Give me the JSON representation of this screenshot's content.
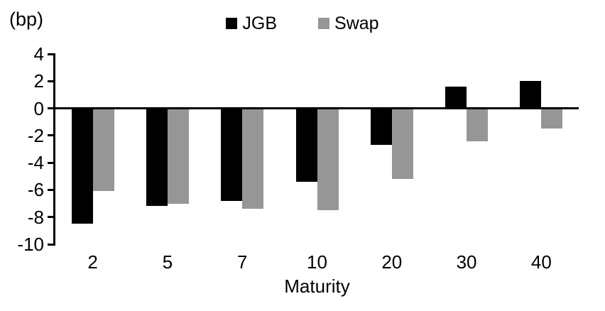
{
  "chart_data": {
    "type": "bar",
    "title": "",
    "unit_label": "(bp)",
    "xlabel": "Maturity",
    "categories": [
      "2",
      "5",
      "7",
      "10",
      "20",
      "30",
      "40"
    ],
    "series": [
      {
        "name": "JGB",
        "color": "#000000",
        "values": [
          -8.5,
          -7.2,
          -6.8,
          -5.4,
          -2.7,
          1.6,
          2.0
        ]
      },
      {
        "name": "Swap",
        "color": "#969696",
        "values": [
          -6.1,
          -7.0,
          -7.4,
          -7.5,
          -5.2,
          -2.4,
          -1.5
        ]
      }
    ],
    "y_ticks": [
      4,
      2,
      0,
      -2,
      -4,
      -6,
      -8,
      -10
    ],
    "ylim": [
      -10,
      4
    ],
    "legend_position": "top",
    "grid": false,
    "background": "#ffffff",
    "axis_color": "#000000"
  }
}
